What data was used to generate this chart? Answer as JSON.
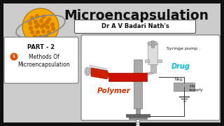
{
  "title": "Microencapsulation",
  "subtitle": "Dr A V Badari Nath's",
  "part_label": "PART - 2",
  "methods_label": "Methods Of\nMicroencapsulation",
  "drug_label": "Drug",
  "drug_color": "#00bbcc",
  "polymer_label": "Polymer",
  "polymer_color": "#cc3300",
  "syringe_pump_label": "Syringe pump",
  "neg_label": "Neg.",
  "hv_label": "HV\nsupply",
  "bg_color": "#cccccc",
  "outer_bg": "#111111",
  "title_color": "#111111",
  "box_bg": "#ffffff",
  "sphere_color": "#f5a800",
  "sphere_dot_color": "#d07800",
  "orbit_color": "#888888",
  "part_num_color": "#e05000"
}
